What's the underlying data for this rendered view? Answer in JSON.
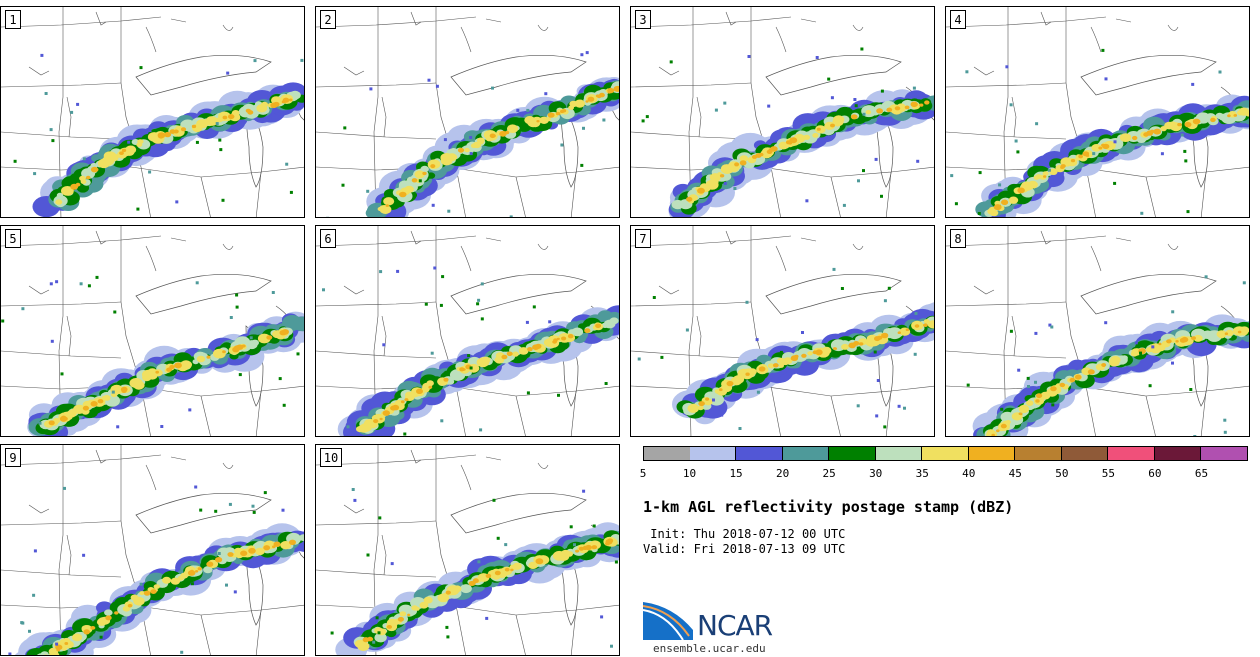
{
  "panels": [
    {
      "label": "1"
    },
    {
      "label": "2"
    },
    {
      "label": "3"
    },
    {
      "label": "4"
    },
    {
      "label": "5"
    },
    {
      "label": "6"
    },
    {
      "label": "7"
    },
    {
      "label": "8"
    },
    {
      "label": "9"
    },
    {
      "label": "10"
    }
  ],
  "colorbar": {
    "ticks": [
      "5",
      "10",
      "15",
      "20",
      "25",
      "30",
      "35",
      "40",
      "45",
      "50",
      "55",
      "60",
      "65"
    ],
    "colors": [
      "#a5a5a5",
      "#b6c3ec",
      "#5257d6",
      "#4e9a9a",
      "#008000",
      "#bde0bd",
      "#f0e060",
      "#f0b020",
      "#b88030",
      "#8f5a38",
      "#f0507a",
      "#6b1838",
      "#b050b0"
    ]
  },
  "title": "1-km AGL reflectivity postage stamp (dBZ)",
  "init": " Init: Thu 2018-07-12 00 UTC",
  "valid": "Valid: Fri 2018-07-13 09 UTC",
  "logo": {
    "name": "NCAR",
    "site": "ensemble.ucar.edu"
  }
}
